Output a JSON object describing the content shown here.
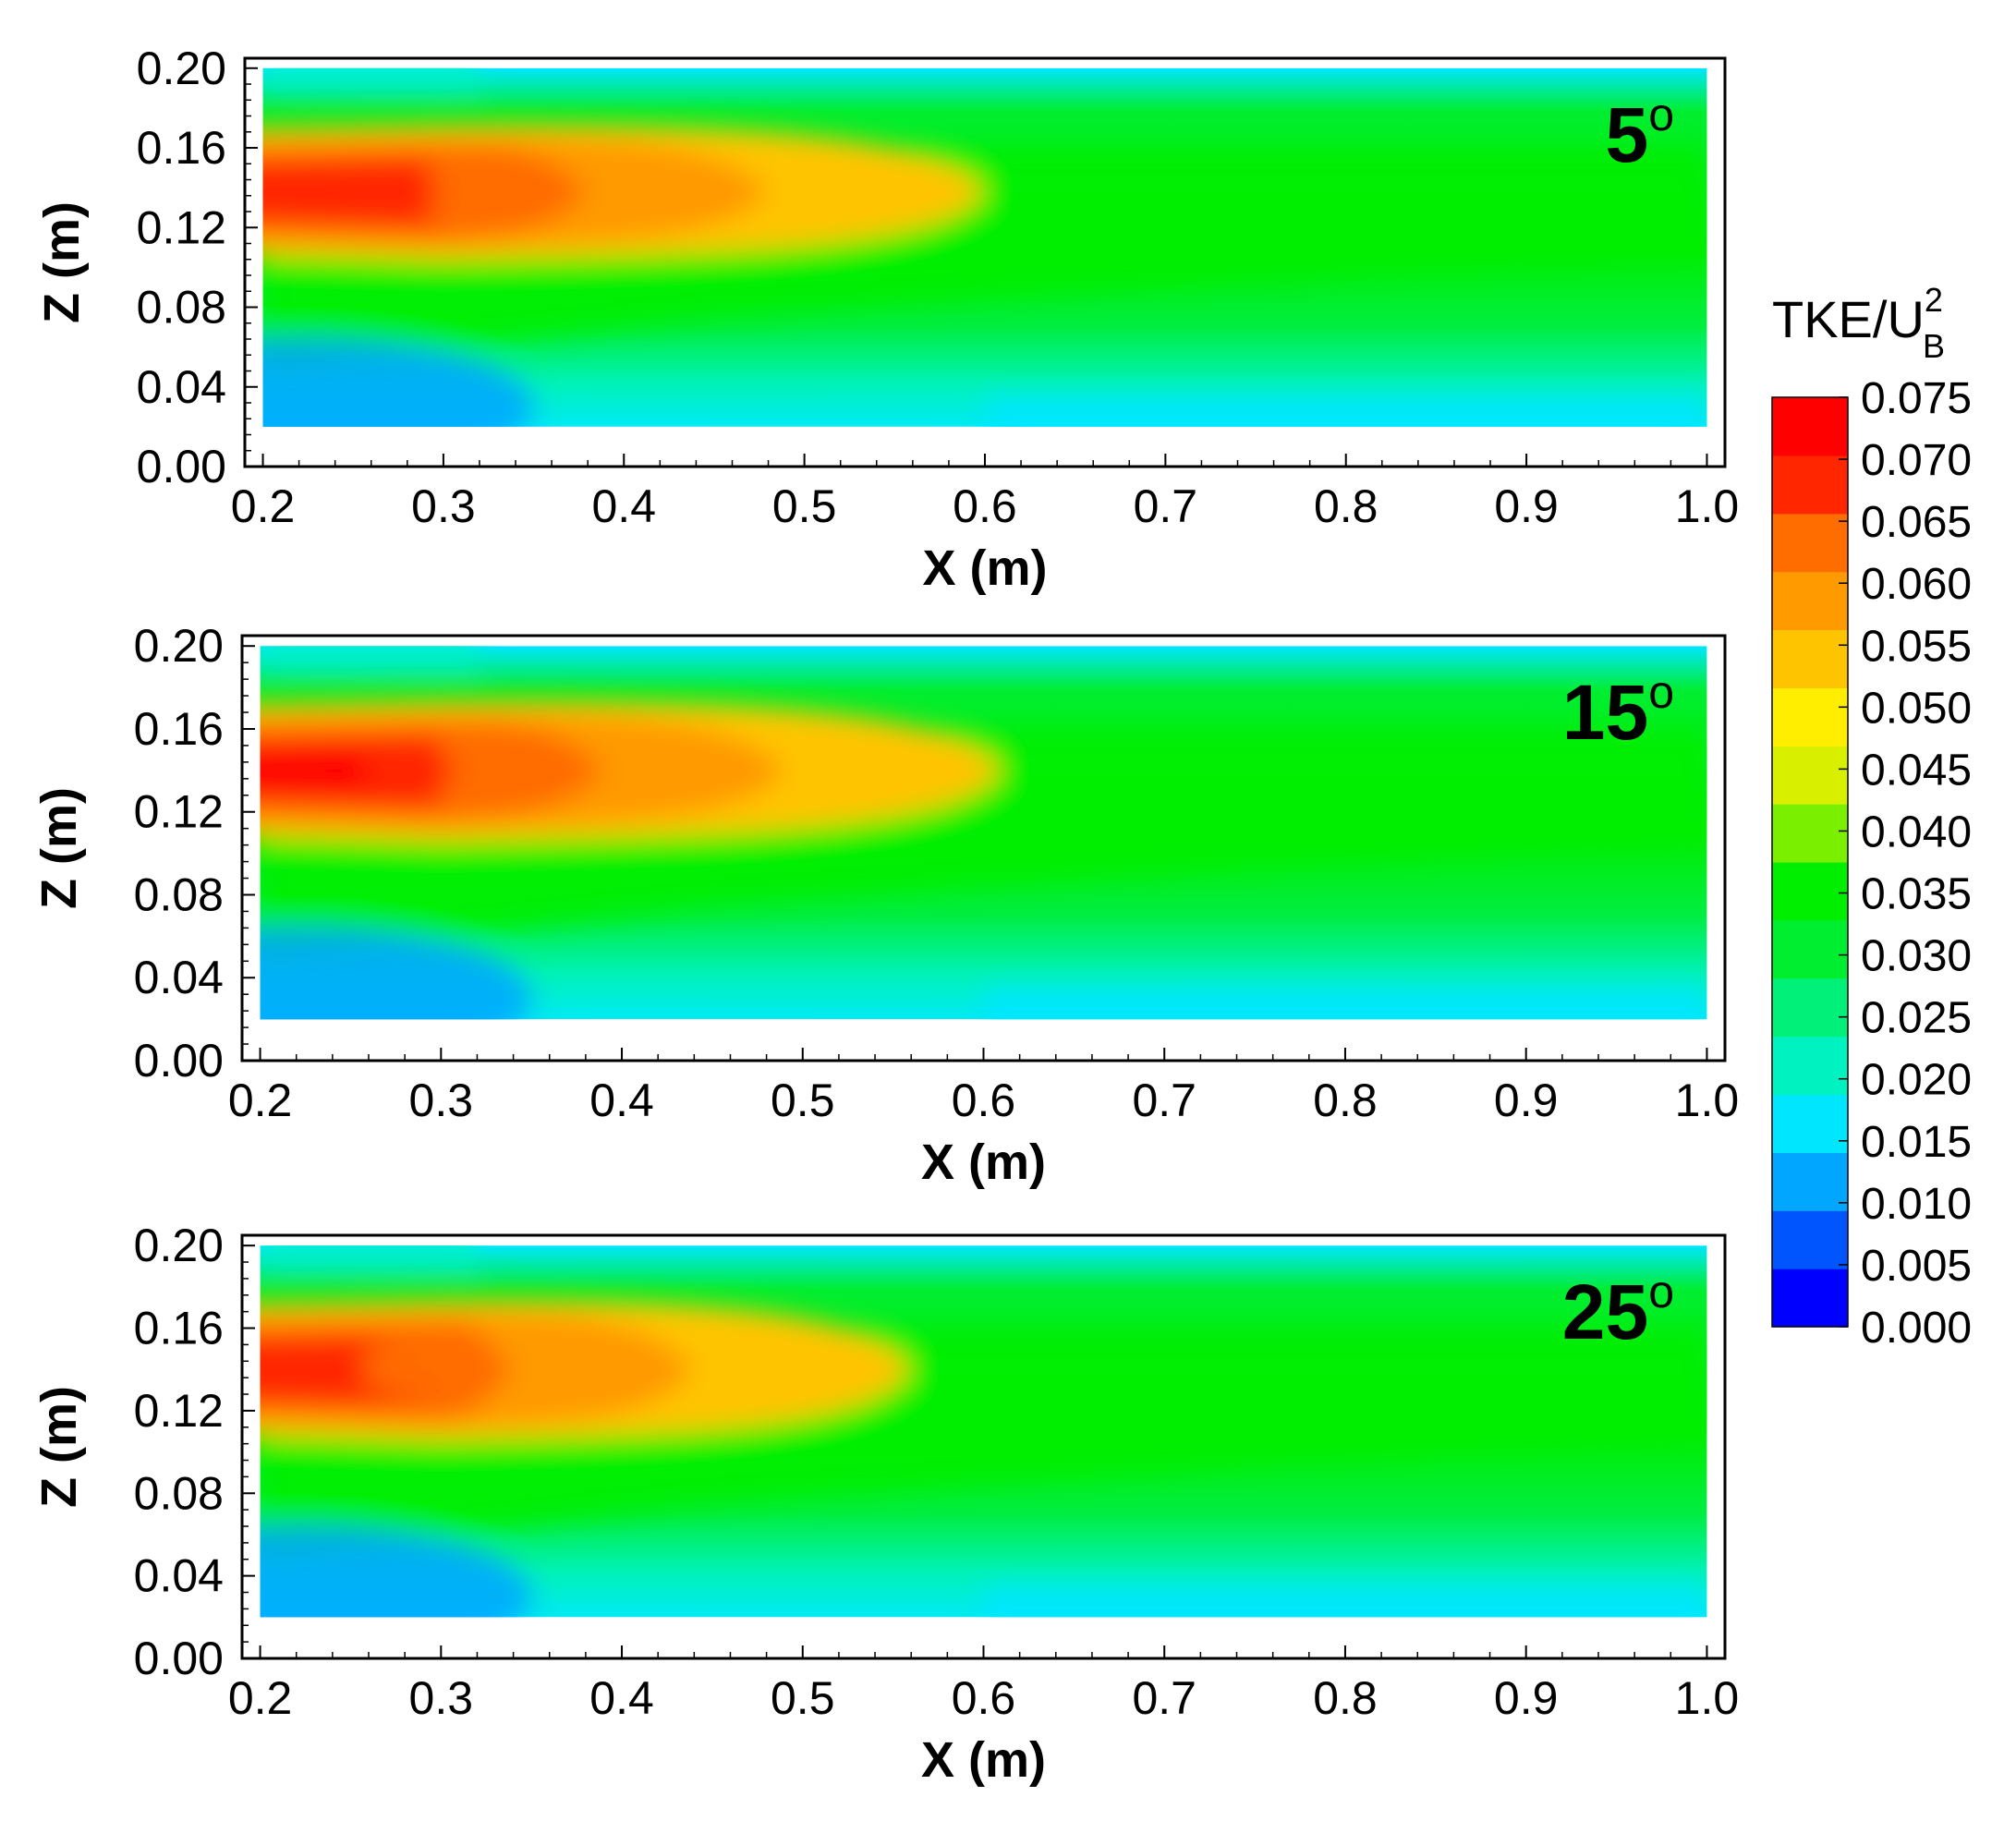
{
  "chart_data": {
    "type": "heatmap",
    "variable": "TKE/U_B^2",
    "colorbar": {
      "title_main": "TKE/U",
      "title_sub": "B",
      "title_sup": "2",
      "range": [
        0.0,
        0.075
      ],
      "tick_labels": [
        "0.075",
        "0.070",
        "0.065",
        "0.060",
        "0.055",
        "0.050",
        "0.045",
        "0.040",
        "0.035",
        "0.030",
        "0.025",
        "0.020",
        "0.015",
        "0.010",
        "0.005",
        "0.000"
      ],
      "colors": [
        "#0000ff",
        "#0055ff",
        "#00a6ff",
        "#00e6ff",
        "#00f2c0",
        "#00f07a",
        "#00ee30",
        "#00ee00",
        "#7af000",
        "#d8f000",
        "#ffee00",
        "#ffc400",
        "#ff9a00",
        "#ff6c00",
        "#ff2600",
        "#ff0000"
      ]
    },
    "panels": [
      {
        "label_number": "5",
        "label_sup": "o",
        "xlabel": "X (m)",
        "ylabel": "Z (m)",
        "xlim": [
          0.19,
          1.01
        ],
        "ylim": [
          0.0,
          0.205
        ],
        "data_xrange": [
          0.2,
          1.0
        ],
        "data_zrange": [
          0.02,
          0.2
        ],
        "x_ticks": [
          "0.2",
          "0.3",
          "0.4",
          "0.5",
          "0.6",
          "0.7",
          "0.8",
          "0.9",
          "1.0"
        ],
        "y_ticks": [
          "0.00",
          "0.04",
          "0.08",
          "0.12",
          "0.16",
          "0.20"
        ],
        "jet_core_z": 0.138,
        "jet_peak_value": 0.068,
        "jet_core_end_x": 0.6
      },
      {
        "label_number": "15",
        "label_sup": "o",
        "xlabel": "X (m)",
        "ylabel": "Z (m)",
        "xlim": [
          0.19,
          1.01
        ],
        "ylim": [
          0.0,
          0.205
        ],
        "data_xrange": [
          0.2,
          1.0
        ],
        "data_zrange": [
          0.02,
          0.2
        ],
        "x_ticks": [
          "0.2",
          "0.3",
          "0.4",
          "0.5",
          "0.6",
          "0.7",
          "0.8",
          "0.9",
          "1.0"
        ],
        "y_ticks": [
          "0.00",
          "0.04",
          "0.08",
          "0.12",
          "0.16",
          "0.20"
        ],
        "jet_core_z": 0.14,
        "jet_peak_value": 0.072,
        "jet_core_end_x": 0.61
      },
      {
        "label_number": "25",
        "label_sup": "o",
        "xlabel": "X (m)",
        "ylabel": "Z (m)",
        "xlim": [
          0.19,
          1.01
        ],
        "ylim": [
          0.0,
          0.205
        ],
        "data_xrange": [
          0.2,
          1.0
        ],
        "data_zrange": [
          0.02,
          0.2
        ],
        "x_ticks": [
          "0.2",
          "0.3",
          "0.4",
          "0.5",
          "0.6",
          "0.7",
          "0.8",
          "0.9",
          "1.0"
        ],
        "y_ticks": [
          "0.00",
          "0.04",
          "0.08",
          "0.12",
          "0.16",
          "0.20"
        ],
        "jet_core_z": 0.14,
        "jet_peak_value": 0.07,
        "jet_core_end_x": 0.56
      }
    ]
  }
}
